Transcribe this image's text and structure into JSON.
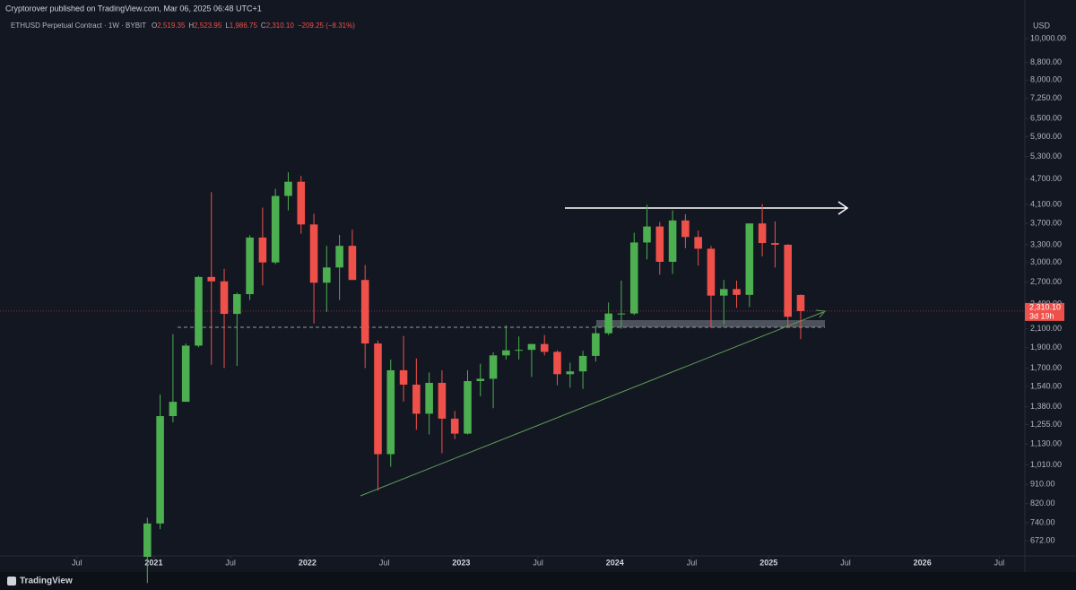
{
  "chart_data": {
    "type": "candlestick",
    "publisher": "Cryptorover published on TradingView.com, Mar 06, 2025 06:48 UTC+1",
    "symbol": "ETHUSD Perpetual Contract · 1W · BYBIT",
    "legend_ohlc": [
      {
        "key": "O",
        "value": "2,519.35"
      },
      {
        "key": "H",
        "value": "2,523.95"
      },
      {
        "key": "L",
        "value": "1,986.75"
      },
      {
        "key": "C",
        "value": "2,310.10"
      }
    ],
    "change": "−209.25 (−8.31%)",
    "currency": "USD",
    "last_price": {
      "value": 2310.1,
      "label": "2,310.10"
    },
    "countdown": "3d 19h",
    "footer": "TradingView",
    "up_color": "#4caf50",
    "down_color": "#f0504a",
    "log_scale": true,
    "x": [
      "2020-12",
      "2021-01",
      "2021-02",
      "2021-03",
      "2021-04",
      "2021-05",
      "2021-06",
      "2021-07",
      "2021-08",
      "2021-09",
      "2021-10",
      "2021-11",
      "2021-12",
      "2022-01",
      "2022-02",
      "2022-03",
      "2022-04",
      "2022-05",
      "2022-06",
      "2022-07",
      "2022-08",
      "2022-09",
      "2022-10",
      "2022-11",
      "2022-12",
      "2023-01",
      "2023-02",
      "2023-03",
      "2023-04",
      "2023-05",
      "2023-06",
      "2023-07",
      "2023-08",
      "2023-09",
      "2023-10",
      "2023-11",
      "2023-12",
      "2024-01",
      "2024-02",
      "2024-03",
      "2024-04",
      "2024-05",
      "2024-06",
      "2024-07",
      "2024-08",
      "2024-09",
      "2024-10",
      "2024-11",
      "2024-12",
      "2025-01",
      "2025-02",
      "2025-03"
    ],
    "open": [
      616,
      737,
      1313,
      1418,
      1918,
      2775,
      2710,
      2275,
      2530,
      3430,
      3000,
      4290,
      4630,
      3680,
      2690,
      2920,
      3280,
      2730,
      1940,
      1070,
      1680,
      1555,
      1330,
      1570,
      1295,
      1195,
      1585,
      1605,
      1820,
      1870,
      1875,
      1935,
      1855,
      1645,
      1670,
      1815,
      2050,
      2280,
      2280,
      3340,
      3640,
      3010,
      3760,
      3440,
      3230,
      2510,
      2600,
      2520,
      3700,
      3330,
      3300,
      2519.35
    ],
    "high": [
      760,
      1475,
      2040,
      1940,
      2790,
      4380,
      2900,
      2550,
      3470,
      4030,
      4460,
      4870,
      4780,
      3900,
      3280,
      3480,
      3580,
      2960,
      1970,
      1780,
      2020,
      1790,
      1660,
      1680,
      1350,
      1680,
      1740,
      1850,
      2140,
      2015,
      1930,
      2030,
      1870,
      1750,
      1865,
      2135,
      2420,
      2720,
      3520,
      4090,
      3730,
      3970,
      3890,
      3560,
      3280,
      2730,
      2720,
      3680,
      4110,
      3740,
      3310,
      2523.95
    ],
    "low": [
      535,
      715,
      1270,
      1460,
      1900,
      1730,
      1700,
      1720,
      2450,
      2650,
      2970,
      3970,
      3500,
      2160,
      2300,
      2450,
      2780,
      1700,
      880,
      1000,
      1420,
      1220,
      1190,
      1075,
      1160,
      1190,
      1460,
      1370,
      1780,
      1780,
      1620,
      1820,
      1550,
      1530,
      1520,
      1760,
      2030,
      2100,
      2260,
      3050,
      2810,
      2820,
      3240,
      2950,
      2110,
      2150,
      2350,
      2360,
      3100,
      2920,
      2120,
      1986.75
    ],
    "close": [
      737,
      1313,
      1418,
      1918,
      2775,
      2710,
      2275,
      2530,
      3430,
      3000,
      4290,
      4630,
      3680,
      2690,
      2920,
      3280,
      2730,
      1940,
      1070,
      1680,
      1555,
      1330,
      1570,
      1295,
      1195,
      1585,
      1605,
      1820,
      1870,
      1875,
      1935,
      1855,
      1645,
      1670,
      1815,
      2050,
      2280,
      2280,
      3340,
      3640,
      3010,
      3760,
      3440,
      3230,
      2510,
      2600,
      2520,
      3700,
      3330,
      3300,
      2240,
      2310.1
    ],
    "xlim": [
      "2020-01",
      "2026-09"
    ],
    "xticks": [
      {
        "value": "2020-07",
        "label": "Jul"
      },
      {
        "value": "2021-01",
        "label": "2021"
      },
      {
        "value": "2021-07",
        "label": "Jul"
      },
      {
        "value": "2022-01",
        "label": "2022"
      },
      {
        "value": "2022-07",
        "label": "Jul"
      },
      {
        "value": "2023-01",
        "label": "2023"
      },
      {
        "value": "2023-07",
        "label": "Jul"
      },
      {
        "value": "2024-01",
        "label": "2024"
      },
      {
        "value": "2024-07",
        "label": "Jul"
      },
      {
        "value": "2025-01",
        "label": "2025"
      },
      {
        "value": "2025-07",
        "label": "Jul"
      },
      {
        "value": "2026-01",
        "label": "2026"
      },
      {
        "value": "2026-07",
        "label": "Jul"
      }
    ],
    "ylim": [
      619,
      11066
    ],
    "yticks": [
      {
        "value": 10000,
        "label": "10,000.00"
      },
      {
        "value": 8800,
        "label": "8,800.00"
      },
      {
        "value": 8000,
        "label": "8,000.00"
      },
      {
        "value": 7250,
        "label": "7,250.00"
      },
      {
        "value": 6500,
        "label": "6,500.00"
      },
      {
        "value": 5900,
        "label": "5,900.00"
      },
      {
        "value": 5300,
        "label": "5,300.00"
      },
      {
        "value": 4700,
        "label": "4,700.00"
      },
      {
        "value": 4100,
        "label": "4,100.00"
      },
      {
        "value": 3700,
        "label": "3,700.00"
      },
      {
        "value": 3300,
        "label": "3,300.00"
      },
      {
        "value": 3000,
        "label": "3,000.00"
      },
      {
        "value": 2700,
        "label": "2,700.00"
      },
      {
        "value": 2400,
        "label": "2,400.00"
      },
      {
        "value": 2100,
        "label": "2,100.00"
      },
      {
        "value": 1900,
        "label": "1,900.00"
      },
      {
        "value": 1700,
        "label": "1,700.00"
      },
      {
        "value": 1540,
        "label": "1,540.00"
      },
      {
        "value": 1380,
        "label": "1,380.00"
      },
      {
        "value": 1255,
        "label": "1,255.00"
      },
      {
        "value": 1130,
        "label": "1,130.00"
      },
      {
        "value": 1010,
        "label": "1,010.00"
      },
      {
        "value": 910,
        "label": "910.00"
      },
      {
        "value": 820,
        "label": "820.00"
      },
      {
        "value": 740,
        "label": "740.00"
      },
      {
        "value": 672,
        "label": "672.00"
      }
    ]
  }
}
